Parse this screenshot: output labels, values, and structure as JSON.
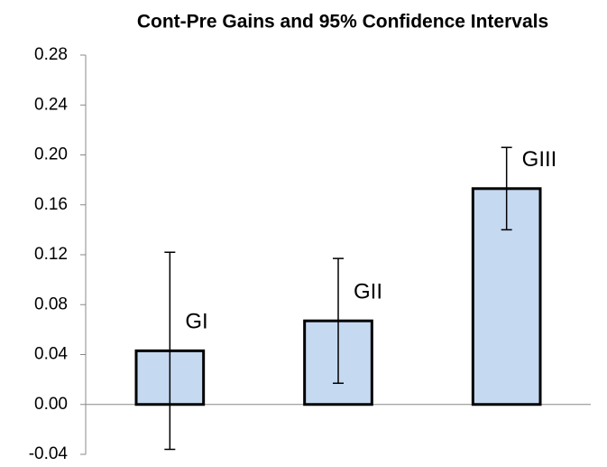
{
  "chart_data": {
    "type": "bar",
    "title": "Cont-Pre Gains and 95% Confidence Intervals",
    "categories": [
      "GI",
      "GII",
      "GIII"
    ],
    "values": [
      0.043,
      0.067,
      0.173
    ],
    "errors": [
      0.079,
      0.05,
      0.033
    ],
    "color": "#c5d9f1",
    "ylim": [
      -0.04,
      0.28
    ],
    "yticks": [
      -0.04,
      {
        "value": 0,
        "label": "0.00"
      },
      0.04,
      0.08,
      0.12,
      0.16,
      {
        "value": 0.2,
        "label": "0.20"
      },
      0.24,
      0.28
    ]
  }
}
